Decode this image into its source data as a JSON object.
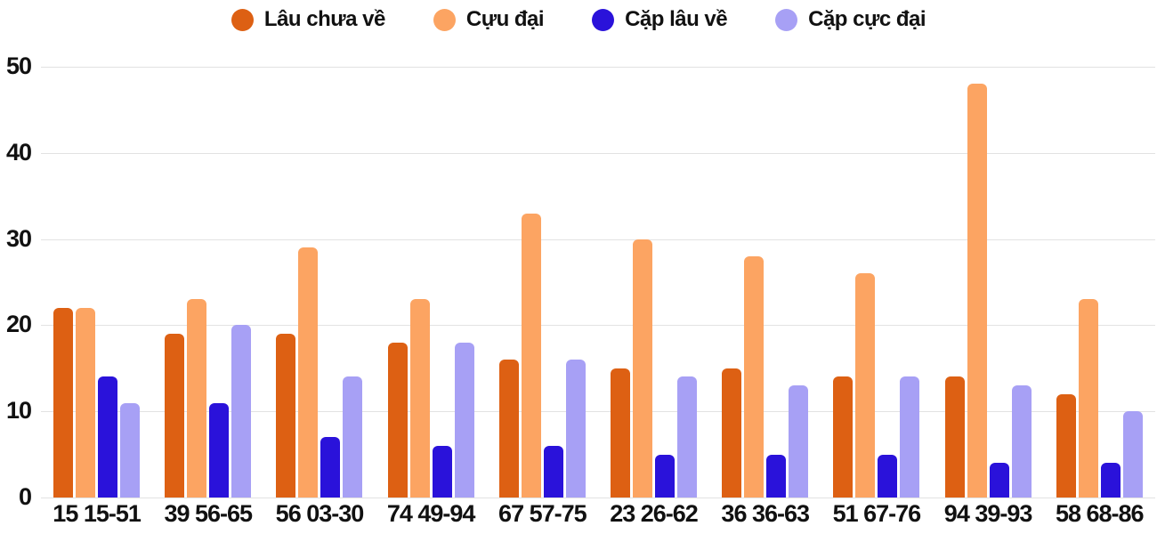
{
  "background": "#FFFFFF",
  "text_color": "#111111",
  "grid_color": "#E2E2E2",
  "chart_data": {
    "type": "bar",
    "title": "",
    "xlabel": "",
    "ylabel": "",
    "ylim": [
      0,
      50
    ],
    "yticks": [
      0,
      10,
      20,
      30,
      40,
      50
    ],
    "grid": true,
    "legend_position": "top",
    "categories": [
      "15 15-51",
      "39 56-65",
      "56 03-30",
      "74 49-94",
      "67 57-75",
      "23 26-62",
      "36 36-63",
      "51 67-76",
      "94 39-93",
      "58 68-86"
    ],
    "series": [
      {
        "name": "Lâu chưa về",
        "color": "#DD6013",
        "values": [
          22,
          19,
          19,
          18,
          16,
          15,
          15,
          14,
          14,
          12
        ]
      },
      {
        "name": "Cựu đại",
        "color": "#FCA462",
        "values": [
          22,
          23,
          29,
          23,
          33,
          30,
          28,
          26,
          48,
          23
        ]
      },
      {
        "name": "Cặp lâu về",
        "color": "#2A12DA",
        "values": [
          14,
          11,
          7,
          6,
          6,
          5,
          5,
          5,
          4,
          4
        ]
      },
      {
        "name": "Cặp cực đại",
        "color": "#A7A0F5",
        "values": [
          11,
          20,
          14,
          18,
          16,
          14,
          13,
          14,
          13,
          10
        ]
      }
    ]
  }
}
